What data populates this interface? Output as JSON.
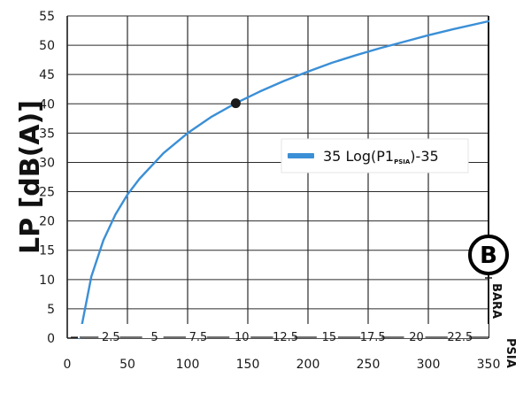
{
  "chart_data": {
    "type": "line",
    "ylabel": "LP [dB(A)]",
    "y_ticks": [
      0,
      5,
      10,
      15,
      20,
      25,
      30,
      35,
      40,
      45,
      50,
      55
    ],
    "ylim": [
      0,
      55
    ],
    "x_ticks": [
      0,
      50,
      100,
      150,
      200,
      250,
      300,
      350
    ],
    "xlim": [
      0,
      350
    ],
    "x_unit": "PSIA",
    "secondary_x_ticks": [
      "2.5",
      "5",
      "7.5",
      "10",
      "12.5",
      "15",
      "17.5",
      "20",
      "22.5"
    ],
    "secondary_x_unit": "BARA",
    "grid": true,
    "legend_position": "right",
    "series": [
      {
        "name_main": "35 Log(P1",
        "name_sub": "PSIA",
        "name_tail": ")-35",
        "color": "#3b8fd6",
        "formula_coefficient": 35,
        "formula_offset": -35,
        "x": [
          10,
          20,
          30,
          40,
          50,
          60,
          80,
          100,
          120,
          140,
          160,
          180,
          200,
          220,
          240,
          260,
          280,
          300,
          320,
          350
        ],
        "y": [
          0,
          10.5,
          16.7,
          21.1,
          24.5,
          27.2,
          31.6,
          35,
          37.8,
          40.1,
          42.1,
          43.9,
          45.5,
          47,
          48.3,
          49.5,
          50.6,
          51.7,
          52.7,
          54.1
        ]
      }
    ],
    "marker": {
      "x": 140,
      "y": 40.1,
      "color": "#1a1a1a"
    },
    "badge": "B"
  }
}
